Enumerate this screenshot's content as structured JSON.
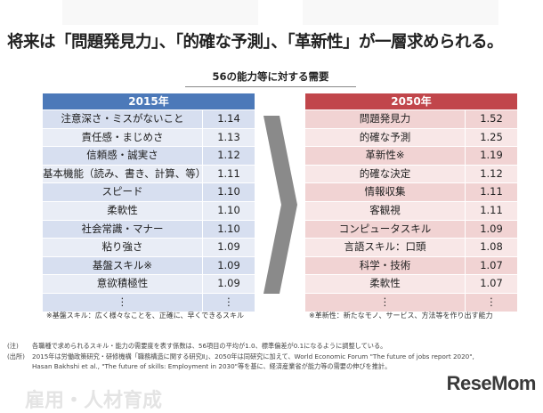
{
  "title": "将来は「問題発見力」、「的確な予測」、「革新性」が一層求められる。",
  "subtitle": "56の能力等に対する需要",
  "colors": {
    "blue_header": "#4c79b9",
    "blue_row_a": "#d7dff0",
    "blue_row_b": "#e9edf6",
    "red_header": "#c1464b",
    "red_row_a": "#f1d3d3",
    "red_row_b": "#f8e7e7"
  },
  "table2015": {
    "header": "2015年",
    "rows": [
      {
        "name": "注意深さ・ミスがないこと",
        "value": "1.14"
      },
      {
        "name": "責任感・まじめさ",
        "value": "1.13"
      },
      {
        "name": "信頼感・誠実さ",
        "value": "1.12"
      },
      {
        "name": "基本機能（読み、書き、計算、等）",
        "value": "1.11"
      },
      {
        "name": "スピード",
        "value": "1.10"
      },
      {
        "name": "柔軟性",
        "value": "1.10"
      },
      {
        "name": "社会常識・マナー",
        "value": "1.10"
      },
      {
        "name": "粘り強さ",
        "value": "1.09"
      },
      {
        "name": "基盤スキル※",
        "value": "1.09"
      },
      {
        "name": "意欲積極性",
        "value": "1.09"
      },
      {
        "name": "⋮",
        "value": "⋮"
      }
    ],
    "note": "※基盤スキル：広く様々なことを、正確に、早くできるスキル"
  },
  "table2050": {
    "header": "2050年",
    "rows": [
      {
        "name": "問題発見力",
        "value": "1.52"
      },
      {
        "name": "的確な予測",
        "value": "1.25"
      },
      {
        "name": "革新性※",
        "value": "1.19"
      },
      {
        "name": "的確な決定",
        "value": "1.12"
      },
      {
        "name": "情報収集",
        "value": "1.11"
      },
      {
        "name": "客観視",
        "value": "1.11"
      },
      {
        "name": "コンピュータスキル",
        "value": "1.09"
      },
      {
        "name": "言語スキル：口頭",
        "value": "1.08"
      },
      {
        "name": "科学・技術",
        "value": "1.07"
      },
      {
        "name": "柔軟性",
        "value": "1.07"
      },
      {
        "name": "⋮",
        "value": "⋮"
      }
    ],
    "note": "※革新性：新たなモノ、サービス、方法等を作り出す能力"
  },
  "footnotes": [
    {
      "key": "(注)",
      "text": "各職種で求められるスキル・能力の需要度を表す係数は、56項目の平均が1.0、標準偏差が0.1になるように調整している。"
    },
    {
      "key": "(出所)",
      "text": "2015年は労働政策研究・研修機構「職務構造に関する研究Ⅱ」、2050年は同研究に加えて、World Economic Forum \"The future of jobs report 2020\","
    },
    {
      "key": "",
      "text": "Hasan Bakhshi et al., \"The future of skills: Employment in 2030\"等を基に、経済産業省が能力等の需要の伸びを推計。"
    }
  ],
  "background_heading": "雇用・人材育成",
  "logo": "ReseMom"
}
